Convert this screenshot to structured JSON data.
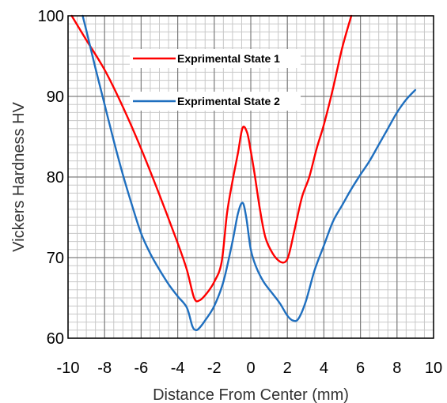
{
  "chart_data": {
    "type": "line",
    "xlabel": "Distance From Center (mm)",
    "ylabel": "Vickers Hardness HV",
    "xlim": [
      -10,
      10
    ],
    "ylim": [
      60,
      100
    ],
    "xticks": [
      -10,
      -8,
      -6,
      -4,
      -2,
      0,
      2,
      4,
      6,
      8,
      10
    ],
    "yticks": [
      60,
      70,
      80,
      90,
      100
    ],
    "xticks_labels": [
      "-10",
      "-8",
      "-6",
      "-4",
      "-2",
      "0",
      "2",
      "4",
      "6",
      "8",
      "10"
    ],
    "yticks_labels": [
      "60",
      "70",
      "80",
      "90",
      "100"
    ],
    "minor_x_step": 0.5,
    "minor_y_step": 1,
    "grid": true,
    "legend_position": "top-center-inside",
    "series": [
      {
        "name": "Exprimental State 1",
        "color": "#ff0000",
        "x": [
          -9.8,
          -9.0,
          -8.0,
          -7.0,
          -6.0,
          -5.0,
          -4.0,
          -3.5,
          -3.1,
          -2.8,
          -2.4,
          -2.0,
          -1.6,
          -1.3,
          -1.0,
          -0.7,
          -0.45,
          -0.2,
          0.0,
          0.2,
          0.5,
          0.8,
          1.2,
          1.6,
          1.9,
          2.1,
          2.4,
          2.8,
          3.2,
          3.6,
          4.0,
          4.5,
          5.0,
          5.5
        ],
        "y": [
          100,
          97,
          93.3,
          88.7,
          83.5,
          77.8,
          71.8,
          68.5,
          65.0,
          64.7,
          65.6,
          67.0,
          69.4,
          75.5,
          79.5,
          83.0,
          86.1,
          85.5,
          83.2,
          80.5,
          76.0,
          72.5,
          70.5,
          69.5,
          69.5,
          70.5,
          73.5,
          77.5,
          80.0,
          83.5,
          86.5,
          91.0,
          96.0,
          100
        ]
      },
      {
        "name": "Exprimental State 2",
        "color": "#1f6fbf",
        "x": [
          -9.2,
          -9.0,
          -8.5,
          -8.0,
          -7.5,
          -7.0,
          -6.5,
          -6.0,
          -5.5,
          -5.0,
          -4.5,
          -4.0,
          -3.5,
          -3.2,
          -3.0,
          -2.8,
          -2.5,
          -2.0,
          -1.5,
          -1.0,
          -0.7,
          -0.45,
          -0.25,
          0.0,
          0.3,
          0.7,
          1.2,
          1.6,
          2.0,
          2.3,
          2.6,
          3.0,
          3.5,
          4.0,
          4.5,
          5.0,
          5.5,
          6.0,
          6.5,
          7.0,
          7.5,
          8.0,
          8.5,
          9.0
        ],
        "y": [
          100,
          98.2,
          93.5,
          89.0,
          84.5,
          80.3,
          76.5,
          73.0,
          70.5,
          68.5,
          66.7,
          65.2,
          63.8,
          61.5,
          61.0,
          61.3,
          62.2,
          64.0,
          67.0,
          72.0,
          75.5,
          76.8,
          75.0,
          71.0,
          68.8,
          67.0,
          65.5,
          64.3,
          62.8,
          62.2,
          62.4,
          64.5,
          68.5,
          71.5,
          74.5,
          76.5,
          78.5,
          80.3,
          82.0,
          84.0,
          86.0,
          88.0,
          89.6,
          90.8
        ]
      }
    ]
  }
}
